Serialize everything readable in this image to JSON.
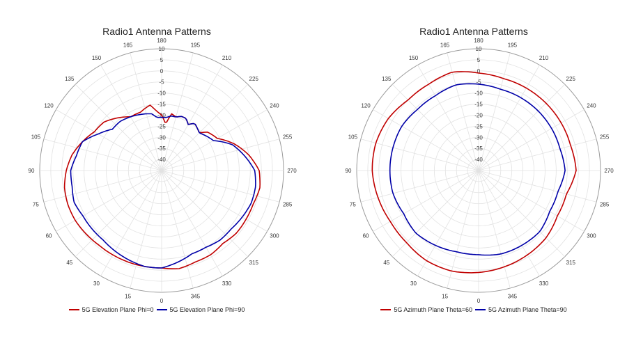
{
  "charts": [
    {
      "title": "Radio1 Antenna Patterns",
      "legend": [
        {
          "name": "5G Elevation Plane Phi=0",
          "color": "#c00000"
        },
        {
          "name": "5G Elevation Plane Phi=90",
          "color": "#0000a8"
        }
      ]
    },
    {
      "title": "Radio1 Antenna Patterns",
      "legend": [
        {
          "name": "5G Azimuth Plane Theta=60",
          "color": "#c00000"
        },
        {
          "name": "5G Azimuth Plane Theta=90",
          "color": "#0000a8"
        }
      ]
    }
  ],
  "chart_data": [
    {
      "type": "polar-line",
      "title": "Radio1 Antenna Patterns",
      "angle_ticks": [
        180,
        195,
        210,
        225,
        240,
        255,
        270,
        285,
        300,
        315,
        330,
        345,
        0,
        15,
        30,
        45,
        60,
        75,
        90,
        105,
        120,
        135,
        150,
        165
      ],
      "radial_ticks": [
        10,
        5,
        0,
        -5,
        -10,
        -15,
        -20,
        -25,
        -30,
        -35,
        -40
      ],
      "rlim": [
        -45,
        10
      ],
      "grid": true,
      "legend_position": "bottom",
      "series": [
        {
          "name": "5G Elevation Plane Phi=0",
          "color": "#c00000",
          "angles": [
            0,
            10,
            20,
            30,
            40,
            50,
            60,
            70,
            80,
            90,
            100,
            110,
            120,
            130,
            140,
            150,
            160,
            170,
            175,
            180,
            185,
            190,
            195,
            200,
            205,
            210,
            215,
            220,
            225,
            230,
            240,
            250,
            260,
            270,
            280,
            290,
            300,
            310,
            320,
            330,
            340,
            350
          ],
          "values": [
            -1,
            -1,
            -1,
            -1,
            -1,
            -0.5,
            0,
            0,
            -0.5,
            -2,
            -4,
            -7,
            -10,
            -11,
            -14,
            -17,
            -17,
            -15,
            -18,
            -20,
            -24,
            -19,
            -20,
            -19,
            -19,
            -21,
            -19,
            -20,
            -21,
            -18,
            -16,
            -10,
            -5,
            -1,
            0,
            -1,
            -1,
            -1,
            -2,
            -1,
            -1,
            0
          ]
        },
        {
          "name": "5G Elevation Plane Phi=90",
          "color": "#0000a8",
          "angles": [
            0,
            10,
            20,
            30,
            40,
            50,
            60,
            70,
            80,
            90,
            100,
            110,
            120,
            130,
            140,
            150,
            160,
            170,
            175,
            180,
            185,
            190,
            195,
            200,
            205,
            210,
            215,
            220,
            225,
            230,
            240,
            250,
            260,
            270,
            280,
            290,
            300,
            310,
            320,
            330,
            340,
            350
          ],
          "values": [
            -1,
            -1,
            -2,
            -3,
            -4,
            -4,
            -4,
            -3,
            -4,
            -4,
            -6,
            -7,
            -12,
            -16,
            -16,
            -17,
            -18,
            -19,
            -21,
            -21,
            -21,
            -20,
            -20,
            -19,
            -19,
            -21,
            -19,
            -20,
            -21,
            -20,
            -18,
            -11,
            -7,
            -3,
            -2,
            -2,
            -3,
            -4,
            -4,
            -5,
            -5,
            -3
          ]
        }
      ]
    },
    {
      "type": "polar-line",
      "title": "Radio1 Antenna Patterns",
      "angle_ticks": [
        180,
        195,
        210,
        225,
        240,
        255,
        270,
        285,
        300,
        315,
        330,
        345,
        0,
        15,
        30,
        45,
        60,
        75,
        90,
        105,
        120,
        135,
        150,
        165
      ],
      "radial_ticks": [
        10,
        5,
        0,
        -5,
        -10,
        -15,
        -20,
        -25,
        -30,
        -35,
        -40
      ],
      "rlim": [
        -45,
        10
      ],
      "grid": true,
      "legend_position": "bottom",
      "series": [
        {
          "name": "5G Azimuth Plane Theta=60",
          "color": "#c00000",
          "angles": [
            0,
            15,
            30,
            45,
            60,
            75,
            90,
            105,
            120,
            135,
            150,
            165,
            180,
            195,
            210,
            225,
            240,
            255,
            270,
            285,
            300,
            315,
            330,
            345
          ],
          "values": [
            1,
            2,
            2,
            1,
            1,
            2,
            3,
            3,
            2,
            0,
            0,
            1,
            -1,
            -2,
            -2,
            -2,
            -2,
            -2,
            -1,
            -4,
            -4,
            -2,
            -1,
            0
          ]
        },
        {
          "name": "5G Azimuth Plane Theta=90",
          "color": "#0000a8",
          "angles": [
            0,
            15,
            30,
            45,
            60,
            75,
            90,
            105,
            120,
            135,
            150,
            165,
            180,
            195,
            210,
            225,
            240,
            255,
            270,
            285,
            300,
            315,
            330,
            345
          ],
          "values": [
            -7,
            -7,
            -6,
            -5,
            -6,
            -5,
            -5,
            -5,
            -5,
            -6,
            -6,
            -5,
            -6,
            -7,
            -7,
            -7,
            -7,
            -7,
            -6,
            -8,
            -8,
            -6,
            -6,
            -6
          ]
        }
      ]
    }
  ]
}
